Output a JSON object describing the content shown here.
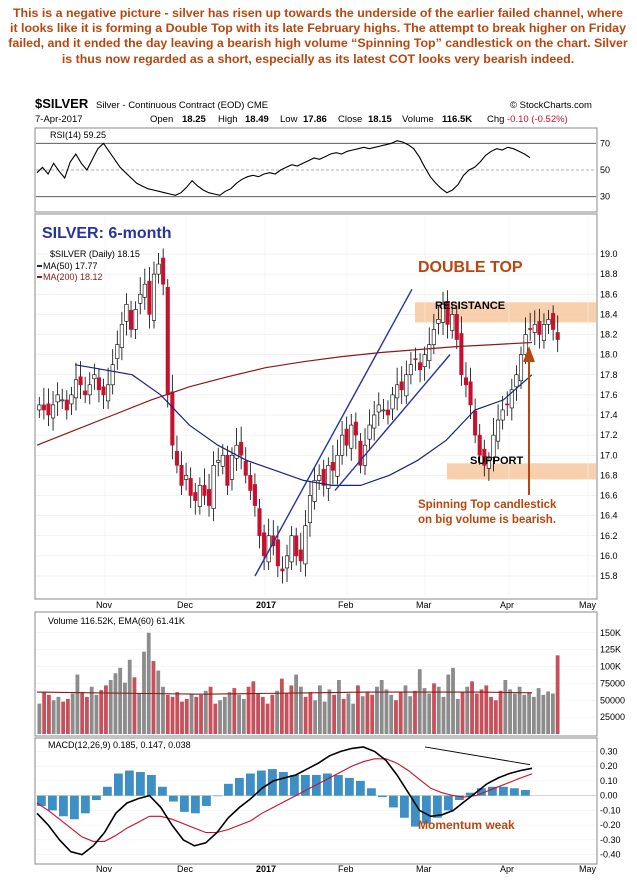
{
  "commentary": "This is a negative picture - silver has risen up towards the underside of the earlier failed channel, where it looks like it is forming a Double Top with its late February highs. The attempt to break higher on Friday failed, and it ended the day leaving a bearish high volume “Spinning Top” candlestick on the chart. Silver is thus now regarded as a short, especially as its latest COT looks very bearish indeed.",
  "header": {
    "symbol": "$SILVER",
    "description": "Silver - Continuous Contract (EOD) CME",
    "watermark": "© StockCharts.com",
    "date": "7-Apr-2017",
    "open_label": "Open",
    "open": "18.25",
    "high_label": "High",
    "high": "18.49",
    "low_label": "Low",
    "low": "17.86",
    "close_label": "Close",
    "close": "18.15",
    "volume_label": "Volume",
    "volume": "116.5K",
    "chg_label": "Chg",
    "chg": "-0.10 (-0.52%)"
  },
  "colors": {
    "up_candle": "#ffffff",
    "down_candle": "#c8102e",
    "ma50": "#1a237e",
    "ma200": "#8b1a1a",
    "annotation": "#b8470f",
    "channel": "#2633a3",
    "zone": "#f8c8a0",
    "macd_line": "#000000",
    "signal_line": "#c8102e",
    "histogram": "#3d8fc6",
    "vol_up": "#8c8c8c",
    "vol_down": "#c8505a",
    "rsi_line": "#000000"
  },
  "chart_data": [
    {
      "type": "line",
      "panel": "rsi",
      "label": "RSI(14) 59.25",
      "ylim": [
        20,
        80
      ],
      "yticks": [
        "70",
        "50",
        "30"
      ],
      "series": [
        {
          "name": "RSI(14)",
          "values": [
            48,
            52,
            47,
            55,
            49,
            44,
            56,
            62,
            55,
            50,
            58,
            66,
            70,
            64,
            58,
            52,
            48,
            44,
            40,
            38,
            36,
            35,
            34,
            33,
            32,
            31,
            33,
            37,
            42,
            38,
            35,
            33,
            32,
            31,
            34,
            36,
            40,
            43,
            45,
            46,
            45,
            47,
            48,
            47,
            50,
            52,
            54,
            53,
            55,
            57,
            59,
            58,
            60,
            62,
            63,
            62,
            64,
            65,
            66,
            67,
            66,
            67,
            68,
            69,
            70,
            72,
            71,
            69,
            66,
            60,
            52,
            45,
            40,
            36,
            33,
            35,
            39,
            46,
            50,
            52,
            56,
            61,
            64,
            66,
            65,
            67,
            66,
            64,
            62,
            59.25
          ]
        }
      ]
    },
    {
      "type": "candlestick",
      "panel": "price",
      "title": "SILVER: 6-month",
      "legend": [
        "$SILVER (Daily) 18.15",
        "MA(50) 17.77",
        "MA(200) 18.12"
      ],
      "x_ticks": [
        "Nov",
        "Dec",
        "2017",
        "Feb",
        "Mar",
        "Apr",
        "May"
      ],
      "ylim": [
        15.6,
        19.1
      ],
      "yticks": [
        19.0,
        18.8,
        18.6,
        18.4,
        18.2,
        18.0,
        17.8,
        17.6,
        17.4,
        17.2,
        17.0,
        16.8,
        16.6,
        16.4,
        16.2,
        16.0,
        15.8
      ],
      "close": [
        17.5,
        17.45,
        17.4,
        17.5,
        17.6,
        17.55,
        17.45,
        17.6,
        17.75,
        17.7,
        17.6,
        17.7,
        17.8,
        17.65,
        17.6,
        17.7,
        17.9,
        18.1,
        18.3,
        18.5,
        18.25,
        18.45,
        18.6,
        18.7,
        18.4,
        18.8,
        18.9,
        18.7,
        17.6,
        17.1,
        16.9,
        16.7,
        16.8,
        16.6,
        16.55,
        16.7,
        16.6,
        16.5,
        16.9,
        16.95,
        17.0,
        16.7,
        17.0,
        17.1,
        17.0,
        16.8,
        16.65,
        16.5,
        16.2,
        16.0,
        16.2,
        16.1,
        15.9,
        15.85,
        16.0,
        16.2,
        16.0,
        15.95,
        16.3,
        16.6,
        16.75,
        16.8,
        16.7,
        16.9,
        16.85,
        17.0,
        17.2,
        17.1,
        17.3,
        17.2,
        16.9,
        17.1,
        17.3,
        17.4,
        17.5,
        17.45,
        17.4,
        17.6,
        17.7,
        17.65,
        17.8,
        17.9,
        17.95,
        17.85,
        18.0,
        18.1,
        18.25,
        18.35,
        18.5,
        18.3,
        18.4,
        18.15,
        17.8,
        17.7,
        17.5,
        17.2,
        17.0,
        16.9,
        16.95,
        17.2,
        17.35,
        17.45,
        17.5,
        17.65,
        17.8,
        18.0,
        18.2,
        18.25,
        18.3,
        18.2,
        18.3,
        18.35,
        18.25,
        18.15
      ],
      "ma50": [
        17.9,
        17.85,
        17.8,
        17.6,
        17.3,
        17.1,
        16.95,
        16.85,
        16.75,
        16.7,
        16.7,
        16.8,
        16.95,
        17.15,
        17.45,
        17.55,
        17.8
      ],
      "ma200": [
        17.1,
        17.25,
        17.4,
        17.55,
        17.68,
        17.78,
        17.87,
        17.93,
        17.98,
        18.02,
        18.05,
        18.08,
        18.1,
        18.12
      ],
      "annotations": [
        "DOUBLE TOP",
        "RESISTANCE",
        "SUPPORT",
        "Spinning Top candlestick",
        "on big volume is bearish."
      ]
    },
    {
      "type": "bar",
      "panel": "volume",
      "label": "Volume 116.52K, EMA(60) 61.41K",
      "ylim": [
        0,
        160000
      ],
      "yticks": [
        "150K",
        "125K",
        "100K",
        "75000",
        "50000",
        "25000"
      ],
      "values": [
        45,
        62,
        58,
        50,
        55,
        48,
        52,
        60,
        88,
        62,
        55,
        70,
        58,
        65,
        72,
        80,
        90,
        98,
        76,
        110,
        84,
        60,
        122,
        150,
        108,
        94,
        70,
        58,
        55,
        62,
        48,
        52,
        60,
        55,
        58,
        64,
        70,
        45,
        50,
        55,
        62,
        68,
        58,
        52,
        70,
        78,
        60,
        55,
        45,
        58,
        64,
        82,
        60,
        72,
        88,
        70,
        55,
        62,
        50,
        72,
        48,
        66,
        58,
        80,
        52,
        60,
        45,
        72,
        56,
        62,
        58,
        70,
        80,
        66,
        58,
        50,
        62,
        72,
        56,
        64,
        96,
        68,
        60,
        75,
        70,
        55,
        88,
        98,
        52,
        62,
        70,
        78,
        60,
        66,
        72,
        55,
        50,
        64,
        80,
        66,
        60,
        70,
        58,
        62,
        55,
        68,
        58,
        63,
        60,
        116.52
      ],
      "ema60": [
        62,
        61,
        60,
        59,
        60,
        61,
        62,
        62,
        62,
        61
      ]
    },
    {
      "type": "line",
      "panel": "macd",
      "label": "MACD(12,26,9) 0.185, 0.147, 0.038",
      "ylim": [
        -0.45,
        0.35
      ],
      "yticks": [
        "0.30",
        "0.20",
        "0.10",
        "0.00",
        "-0.10",
        "-0.20",
        "-0.30",
        "-0.40"
      ],
      "annotation": "Momentum weak",
      "series": [
        {
          "name": "MACD",
          "values": [
            -0.12,
            -0.2,
            -0.3,
            -0.38,
            -0.4,
            -0.34,
            -0.25,
            -0.12,
            -0.05,
            -0.02,
            0.0,
            -0.08,
            -0.2,
            -0.3,
            -0.34,
            -0.32,
            -0.25,
            -0.15,
            -0.08,
            -0.02,
            0.05,
            0.1,
            0.12,
            0.14,
            0.18,
            0.22,
            0.27,
            0.3,
            0.32,
            0.33,
            0.3,
            0.24,
            0.14,
            0.02,
            -0.1,
            -0.14,
            -0.13,
            -0.1,
            -0.04,
            0.02,
            0.08,
            0.12,
            0.15,
            0.17,
            0.185
          ]
        },
        {
          "name": "Signal",
          "values": [
            -0.05,
            -0.1,
            -0.16,
            -0.22,
            -0.28,
            -0.31,
            -0.31,
            -0.27,
            -0.22,
            -0.18,
            -0.14,
            -0.14,
            -0.16,
            -0.19,
            -0.22,
            -0.25,
            -0.25,
            -0.23,
            -0.2,
            -0.17,
            -0.12,
            -0.08,
            -0.04,
            0.0,
            0.04,
            0.08,
            0.12,
            0.16,
            0.2,
            0.23,
            0.25,
            0.25,
            0.22,
            0.17,
            0.11,
            0.05,
            0.02,
            0.0,
            -0.01,
            0.0,
            0.03,
            0.06,
            0.09,
            0.12,
            0.147
          ]
        }
      ]
    }
  ]
}
